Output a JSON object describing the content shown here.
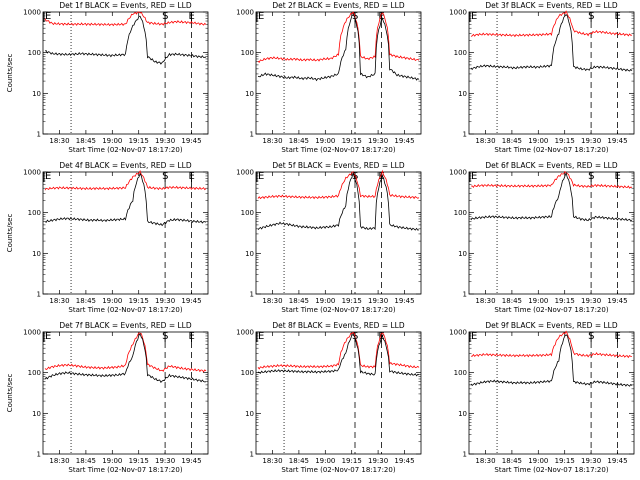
{
  "colors": {
    "events": "#000000",
    "lld": "#ff0000",
    "background": "#ffffff"
  },
  "chart_data": [
    {
      "type": "line",
      "title": "Det 1f BLACK = Events, RED = LLD",
      "xlabel": "Start Time (02-Nov-07 18:17:20)",
      "ylabel": "Counts/sec",
      "yscale": "log",
      "ylim": [
        1,
        1000
      ],
      "yticks": [
        "1",
        "10",
        "100",
        "1000"
      ],
      "xticks": [
        "18:30",
        "18:45",
        "19:00",
        "19:15",
        "19:30",
        "19:45"
      ],
      "markers": [
        {
          "label": "E",
          "x": 0.0
        },
        {
          "label": "S",
          "x": 0.74
        },
        {
          "label": "E",
          "x": 0.9
        }
      ],
      "series": [
        {
          "name": "Events",
          "values": [
            110,
            95,
            92,
            90,
            92,
            95,
            92,
            90,
            88,
            85,
            88,
            90,
            450,
            800,
            80,
            60,
            55,
            90,
            92,
            88,
            85,
            80,
            78
          ]
        },
        {
          "name": "LLD",
          "values": [
            650,
            520,
            510,
            505,
            500,
            505,
            500,
            498,
            495,
            490,
            495,
            500,
            900,
            1000,
            550,
            520,
            500,
            550,
            580,
            560,
            550,
            520,
            490
          ]
        }
      ]
    },
    {
      "type": "line",
      "title": "Det 2f BLACK = Events, RED = LLD",
      "xlabel": "Start Time (02-Nov-07 18:17:20)",
      "ylabel": "",
      "yscale": "log",
      "ylim": [
        1,
        1000
      ],
      "yticks": [
        "1",
        "10",
        "100",
        "1000"
      ],
      "xticks": [
        "18:30",
        "18:45",
        "19:00",
        "19:15",
        "19:30",
        "19:45"
      ],
      "markers": [
        {
          "label": "E",
          "x": 0.0
        },
        {
          "label": "S",
          "x": 0.6
        },
        {
          "label": "E",
          "x": 0.76
        }
      ],
      "series": [
        {
          "name": "Events",
          "values": [
            25,
            30,
            28,
            26,
            24,
            25,
            23,
            24,
            22,
            24,
            26,
            30,
            120,
            900,
            30,
            25,
            30,
            700,
            40,
            28,
            26,
            24,
            22
          ]
        },
        {
          "name": "LLD",
          "values": [
            60,
            70,
            75,
            72,
            68,
            70,
            66,
            68,
            65,
            70,
            72,
            90,
            600,
            1000,
            80,
            70,
            80,
            1000,
            90,
            80,
            75,
            70,
            65
          ]
        }
      ]
    },
    {
      "type": "line",
      "title": "Det 3f BLACK = Events, RED = LLD",
      "xlabel": "Start Time (02-Nov-07 18:17:20)",
      "ylabel": "",
      "yscale": "log",
      "ylim": [
        1,
        1000
      ],
      "yticks": [
        "1",
        "10",
        "100",
        "1000"
      ],
      "xticks": [
        "18:30",
        "18:45",
        "19:00",
        "19:15",
        "19:30",
        "19:45"
      ],
      "markers": [
        {
          "label": "E",
          "x": 0.0
        },
        {
          "label": "S",
          "x": 0.74
        },
        {
          "label": "E",
          "x": 0.9
        }
      ],
      "series": [
        {
          "name": "Events",
          "values": [
            40,
            45,
            48,
            46,
            45,
            44,
            42,
            44,
            45,
            44,
            46,
            48,
            300,
            900,
            45,
            40,
            38,
            45,
            44,
            42,
            40,
            38,
            36
          ]
        },
        {
          "name": "LLD",
          "values": [
            260,
            280,
            285,
            280,
            275,
            270,
            265,
            270,
            272,
            275,
            280,
            290,
            800,
            1000,
            350,
            300,
            280,
            330,
            320,
            300,
            290,
            280,
            270
          ]
        }
      ]
    },
    {
      "type": "line",
      "title": "Det 4f BLACK = Events, RED = LLD",
      "xlabel": "Start Time (02-Nov-07 18:17:20)",
      "ylabel": "Counts/sec",
      "yscale": "log",
      "ylim": [
        1,
        1000
      ],
      "yticks": [
        "1",
        "10",
        "100",
        "1000"
      ],
      "xticks": [
        "18:30",
        "18:45",
        "19:00",
        "19:15",
        "19:30",
        "19:45"
      ],
      "markers": [
        {
          "label": "E",
          "x": 0.0
        },
        {
          "label": "S",
          "x": 0.74
        },
        {
          "label": "E",
          "x": 0.9
        }
      ],
      "series": [
        {
          "name": "Events",
          "values": [
            60,
            65,
            70,
            72,
            70,
            68,
            65,
            66,
            64,
            66,
            68,
            70,
            200,
            900,
            60,
            55,
            50,
            65,
            68,
            65,
            62,
            60,
            58
          ]
        },
        {
          "name": "LLD",
          "values": [
            380,
            400,
            410,
            405,
            400,
            395,
            390,
            395,
            392,
            395,
            400,
            410,
            750,
            1000,
            420,
            400,
            390,
            420,
            415,
            410,
            400,
            395,
            390
          ]
        }
      ]
    },
    {
      "type": "line",
      "title": "Det 5f BLACK = Events, RED = LLD",
      "xlabel": "Start Time (02-Nov-07 18:17:20)",
      "ylabel": "",
      "yscale": "log",
      "ylim": [
        1,
        1000
      ],
      "yticks": [
        "1",
        "10",
        "100",
        "1000"
      ],
      "xticks": [
        "18:30",
        "18:45",
        "19:00",
        "19:15",
        "19:30",
        "19:45"
      ],
      "markers": [
        {
          "label": "E",
          "x": 0.0
        },
        {
          "label": "S",
          "x": 0.6
        },
        {
          "label": "E",
          "x": 0.76
        }
      ],
      "series": [
        {
          "name": "Events",
          "values": [
            40,
            45,
            50,
            55,
            52,
            48,
            45,
            44,
            42,
            44,
            45,
            50,
            150,
            900,
            45,
            40,
            42,
            800,
            50,
            45,
            42,
            40,
            38
          ]
        },
        {
          "name": "LLD",
          "values": [
            230,
            240,
            250,
            255,
            250,
            245,
            240,
            238,
            236,
            240,
            245,
            260,
            700,
            1000,
            260,
            250,
            250,
            1000,
            270,
            255,
            245,
            240,
            235
          ]
        }
      ]
    },
    {
      "type": "line",
      "title": "Det 6f BLACK = Events, RED = LLD",
      "xlabel": "Start Time (02-Nov-07 18:17:20)",
      "ylabel": "",
      "yscale": "log",
      "ylim": [
        1,
        1000
      ],
      "yticks": [
        "1",
        "10",
        "100",
        "1000"
      ],
      "xticks": [
        "18:30",
        "18:45",
        "19:00",
        "19:15",
        "19:30",
        "19:45"
      ],
      "markers": [
        {
          "label": "E",
          "x": 0.0
        },
        {
          "label": "S",
          "x": 0.74
        },
        {
          "label": "E",
          "x": 0.9
        }
      ],
      "series": [
        {
          "name": "Events",
          "values": [
            70,
            75,
            78,
            80,
            78,
            76,
            74,
            75,
            74,
            76,
            78,
            80,
            250,
            900,
            80,
            70,
            65,
            78,
            76,
            72,
            70,
            68,
            65
          ]
        },
        {
          "name": "LLD",
          "values": [
            440,
            460,
            470,
            465,
            460,
            455,
            450,
            455,
            452,
            455,
            460,
            470,
            800,
            1000,
            480,
            450,
            440,
            470,
            460,
            450,
            440,
            430,
            420
          ]
        }
      ]
    },
    {
      "type": "line",
      "title": "Det 7f BLACK = Events, RED = LLD",
      "xlabel": "Start Time (02-Nov-07 18:17:20)",
      "ylabel": "Counts/sec",
      "yscale": "log",
      "ylim": [
        1,
        1000
      ],
      "yticks": [
        "1",
        "10",
        "100",
        "1000"
      ],
      "xticks": [
        "18:30",
        "18:45",
        "19:00",
        "19:15",
        "19:30",
        "19:45"
      ],
      "markers": [
        {
          "label": "E",
          "x": 0.0
        },
        {
          "label": "S",
          "x": 0.74
        },
        {
          "label": "E",
          "x": 0.9
        }
      ],
      "series": [
        {
          "name": "Events",
          "values": [
            70,
            85,
            95,
            100,
            95,
            90,
            88,
            86,
            84,
            86,
            88,
            95,
            250,
            900,
            90,
            70,
            60,
            85,
            80,
            75,
            70,
            65,
            60
          ]
        },
        {
          "name": "LLD",
          "values": [
            120,
            140,
            150,
            155,
            150,
            140,
            135,
            132,
            130,
            134,
            138,
            150,
            500,
            1000,
            160,
            130,
            110,
            145,
            135,
            125,
            120,
            115,
            110
          ]
        }
      ]
    },
    {
      "type": "line",
      "title": "Det 8f BLACK = Events, RED = LLD",
      "xlabel": "Start Time (02-Nov-07 18:17:20)",
      "ylabel": "",
      "yscale": "log",
      "ylim": [
        1,
        1000
      ],
      "yticks": [
        "1",
        "10",
        "100",
        "1000"
      ],
      "xticks": [
        "18:30",
        "18:45",
        "19:00",
        "19:15",
        "19:30",
        "19:45"
      ],
      "markers": [
        {
          "label": "E",
          "x": 0.0
        },
        {
          "label": "S",
          "x": 0.6
        },
        {
          "label": "E",
          "x": 0.76
        }
      ],
      "series": [
        {
          "name": "Events",
          "values": [
            100,
            105,
            110,
            112,
            110,
            108,
            105,
            106,
            104,
            106,
            108,
            115,
            300,
            900,
            105,
            95,
            90,
            800,
            110,
            100,
            95,
            90,
            88
          ]
        },
        {
          "name": "LLD",
          "values": [
            130,
            140,
            145,
            150,
            148,
            145,
            140,
            142,
            140,
            142,
            145,
            160,
            600,
            1000,
            150,
            140,
            140,
            1000,
            170,
            160,
            150,
            140,
            135
          ]
        }
      ]
    },
    {
      "type": "line",
      "title": "Det 9f BLACK = Events, RED = LLD",
      "xlabel": "Start Time (02-Nov-07 18:17:20)",
      "ylabel": "",
      "yscale": "log",
      "ylim": [
        1,
        1000
      ],
      "yticks": [
        "1",
        "10",
        "100",
        "1000"
      ],
      "xticks": [
        "18:30",
        "18:45",
        "19:00",
        "19:15",
        "19:30",
        "19:45"
      ],
      "markers": [
        {
          "label": "E",
          "x": 0.0
        },
        {
          "label": "S",
          "x": 0.74
        },
        {
          "label": "E",
          "x": 0.9
        }
      ],
      "series": [
        {
          "name": "Events",
          "values": [
            50,
            55,
            60,
            62,
            60,
            58,
            56,
            57,
            56,
            58,
            60,
            62,
            200,
            900,
            60,
            55,
            52,
            60,
            58,
            55,
            52,
            50,
            48
          ]
        },
        {
          "name": "LLD",
          "values": [
            260,
            270,
            280,
            275,
            270,
            265,
            262,
            265,
            264,
            266,
            270,
            280,
            750,
            1000,
            300,
            270,
            260,
            290,
            280,
            270,
            260,
            255,
            250
          ]
        }
      ]
    }
  ]
}
